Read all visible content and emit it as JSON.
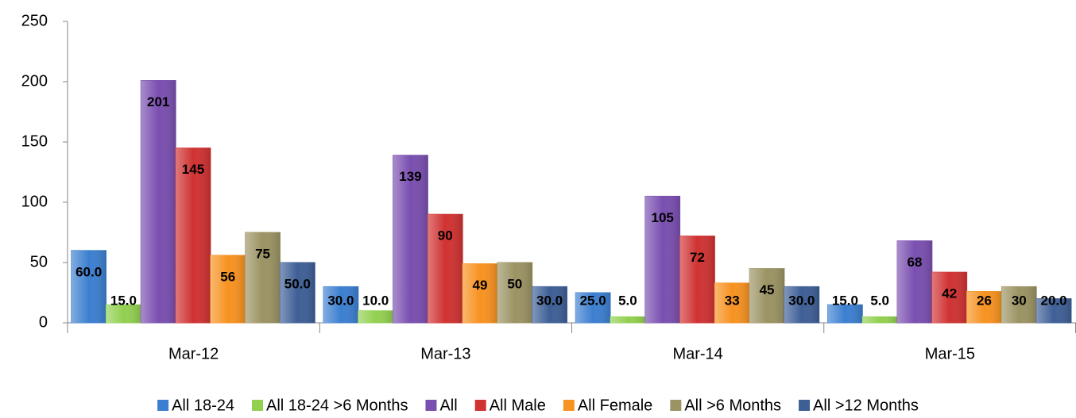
{
  "chart_data": {
    "type": "bar",
    "categories": [
      "Mar-12",
      "Mar-13",
      "Mar-14",
      "Mar-15"
    ],
    "ylim": [
      0,
      250
    ],
    "yticks": [
      0,
      50,
      100,
      150,
      200,
      250
    ],
    "grid": false,
    "legend": "bottom",
    "series": [
      {
        "name": "All 18-24",
        "color": "#3c7fd0",
        "values": [
          60,
          30,
          25,
          15
        ],
        "value_labels": [
          "60.0",
          "30.0",
          "25.0",
          "15.0"
        ]
      },
      {
        "name": "All 18-24 >6 Months",
        "color": "#92d050",
        "values": [
          15,
          10,
          5,
          5
        ],
        "value_labels": [
          "15.0",
          "10.0",
          "5.0",
          "5.0"
        ]
      },
      {
        "name": "All",
        "color": "#7a4fb0",
        "values": [
          201,
          139,
          105,
          68
        ]
      },
      {
        "name": "All Male",
        "color": "#d03232",
        "values": [
          145,
          90,
          72,
          42
        ]
      },
      {
        "name": "All Female",
        "color": "#f79221",
        "values": [
          56,
          49,
          33,
          26
        ]
      },
      {
        "name": "All >6 Months",
        "color": "#9b9363",
        "values": [
          75,
          50,
          45,
          30
        ]
      },
      {
        "name": "All >12 Months",
        "color": "#3e5f96",
        "values": [
          50,
          30,
          30,
          20
        ],
        "value_labels": [
          "50.0",
          "30.0",
          "30.0",
          "20.0"
        ]
      }
    ]
  }
}
